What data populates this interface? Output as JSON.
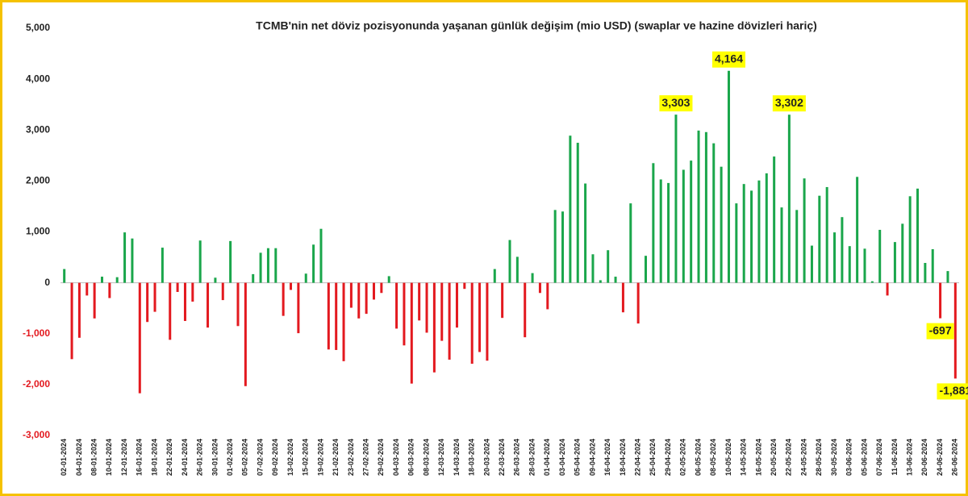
{
  "chart_data": {
    "type": "bar",
    "title": "TCMB'nin net döviz pozisyonunda yaşanan günlük değişim (mio USD) (swaplar ve hazine dövizleri hariç)",
    "categories": [
      "02-01-2024",
      null,
      "04-01-2024",
      null,
      "08-01-2024",
      null,
      "10-01-2024",
      null,
      "12-01-2024",
      null,
      "16-01-2024",
      null,
      "18-01-2024",
      null,
      "22-01-2024",
      null,
      "24-01-2024",
      null,
      "26-01-2024",
      null,
      "30-01-2024",
      null,
      "01-02-2024",
      null,
      "05-02-2024",
      null,
      "07-02-2024",
      null,
      "09-02-2024",
      null,
      "13-02-2024",
      null,
      "15-02-2024",
      null,
      "19-02-2024",
      null,
      "21-02-2024",
      null,
      "23-02-2024",
      null,
      "27-02-2024",
      null,
      "29-02-2024",
      null,
      "04-03-2024",
      null,
      "06-03-2024",
      null,
      "08-03-2024",
      null,
      "12-03-2024",
      null,
      "14-03-2024",
      null,
      "18-03-2024",
      null,
      "20-03-2024",
      null,
      "22-03-2024",
      null,
      "26-03-2024",
      null,
      "28-03-2024",
      null,
      "01-04-2024",
      null,
      "03-04-2024",
      null,
      "05-04-2024",
      null,
      "09-04-2024",
      null,
      "16-04-2024",
      null,
      "18-04-2024",
      null,
      "22-04-2024",
      null,
      "25-04-2024",
      null,
      "29-04-2024",
      null,
      "02-05-2024",
      null,
      "06-05-2024",
      null,
      "08-05-2024",
      null,
      "10-05-2024",
      null,
      "14-05-2024",
      null,
      "16-05-2024",
      null,
      "20-05-2024",
      null,
      "22-05-2024",
      null,
      "24-05-2024",
      null,
      "28-05-2024",
      null,
      "30-05-2024",
      null,
      "03-06-2024",
      null,
      "05-06-2024",
      null,
      "07-06-2024",
      null,
      "11-06-2024",
      null,
      "13-06-2024",
      null,
      "20-06-2024",
      null,
      "24-06-2024",
      null,
      "26-06-2024"
    ],
    "values": [
      270,
      -1500,
      -1080,
      -250,
      -700,
      120,
      -300,
      110,
      990,
      870,
      -2170,
      -770,
      -570,
      690,
      -1120,
      -180,
      -750,
      -370,
      830,
      -880,
      100,
      -340,
      820,
      -850,
      -2030,
      170,
      590,
      680,
      680,
      -650,
      -140,
      -990,
      180,
      750,
      1060,
      -1310,
      -1320,
      -1540,
      -490,
      -700,
      -610,
      -330,
      -200,
      130,
      -900,
      -1230,
      -1980,
      -740,
      -980,
      -1760,
      -1140,
      -1510,
      -880,
      -120,
      -1590,
      -1360,
      -1530,
      270,
      -690,
      840,
      510,
      -1070,
      190,
      -200,
      -520,
      1430,
      1400,
      2890,
      2750,
      1950,
      560,
      50,
      640,
      120,
      -580,
      1560,
      -800,
      530,
      2350,
      2030,
      1960,
      3303,
      2220,
      2400,
      2990,
      2960,
      2740,
      2280,
      4164,
      1560,
      1940,
      1810,
      2010,
      2150,
      2480,
      1480,
      3302,
      1430,
      2050,
      730,
      1710,
      1880,
      990,
      1290,
      720,
      2080,
      670,
      30,
      1040,
      -250,
      800,
      1160,
      1700,
      1850,
      390,
      660,
      -697,
      230,
      -1881
    ],
    "value_labels": {
      "81": "3,303",
      "88": "4,164",
      "96": "3,302",
      "116": "-697",
      "118": "-1,881"
    },
    "positive_color": "#1aa64b",
    "negative_color": "#e3191f",
    "ylim": [
      -3000,
      5000
    ],
    "yticks": [
      {
        "value": -3000,
        "label": "-3,000"
      },
      {
        "value": -2000,
        "label": "-2,000"
      },
      {
        "value": -1000,
        "label": "-1,000"
      },
      0,
      {
        "value": 1000,
        "label": "1,000"
      },
      {
        "value": 2000,
        "label": "2,000"
      },
      {
        "value": 3000,
        "label": "3,000"
      },
      {
        "value": 4000,
        "label": "4,000"
      },
      {
        "value": 5000,
        "label": "5,000"
      }
    ],
    "grid": false
  }
}
